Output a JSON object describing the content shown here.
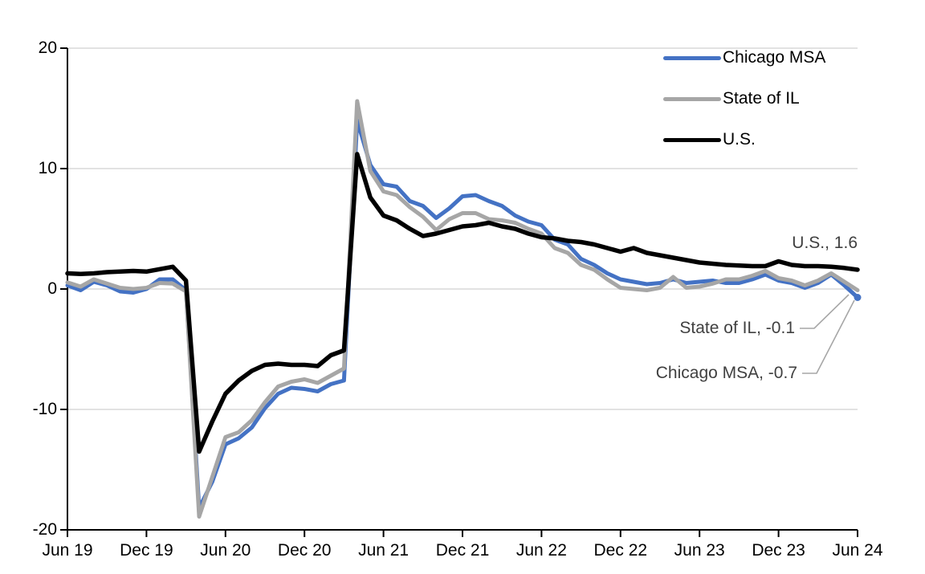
{
  "chart_data": {
    "type": "line",
    "title": "",
    "xlabel": "",
    "ylabel": "",
    "x_start": "Jun 2019",
    "x_end": "Jun 2024",
    "x_frequency": "monthly",
    "x_tick_labels": [
      "Jun 19",
      "Dec 19",
      "Jun 20",
      "Dec 20",
      "Jun 21",
      "Dec 21",
      "Jun 22",
      "Dec 22",
      "Jun 23",
      "Dec 23",
      "Jun 24"
    ],
    "y_tick_labels": [
      "20",
      "10",
      "0",
      "-10",
      "-20"
    ],
    "y_tick_values": [
      20,
      10,
      0,
      -10,
      -20
    ],
    "ylim": [
      -20,
      20
    ],
    "grid": "horizontal",
    "gridline_values": [
      20,
      10,
      0,
      -10
    ],
    "legend_position": "top-right",
    "series": [
      {
        "name": "Chicago MSA",
        "color": "#4472C4",
        "width": 5,
        "end_marker": true,
        "values": [
          0.3,
          -0.1,
          0.6,
          0.3,
          -0.2,
          -0.3,
          0.0,
          0.8,
          0.8,
          -0.1,
          -18.2,
          -16.0,
          -12.9,
          -12.4,
          -11.5,
          -9.9,
          -8.7,
          -8.2,
          -8.3,
          -8.5,
          -7.9,
          -7.6,
          14.0,
          10.3,
          8.7,
          8.5,
          7.3,
          6.9,
          5.9,
          6.7,
          7.7,
          7.8,
          7.3,
          6.9,
          6.1,
          5.6,
          5.3,
          4.1,
          3.7,
          2.5,
          2.0,
          1.3,
          0.8,
          0.6,
          0.4,
          0.5,
          0.8,
          0.5,
          0.6,
          0.7,
          0.5,
          0.5,
          0.8,
          1.2,
          0.7,
          0.5,
          0.1,
          0.5,
          1.2,
          0.3,
          -0.7
        ]
      },
      {
        "name": "State of IL",
        "color": "#A6A6A6",
        "width": 5,
        "end_marker": false,
        "values": [
          0.55,
          0.2,
          0.8,
          0.45,
          0.1,
          0.0,
          0.1,
          0.5,
          0.45,
          -0.2,
          -18.9,
          -15.6,
          -12.3,
          -11.9,
          -10.9,
          -9.4,
          -8.1,
          -7.7,
          -7.5,
          -7.8,
          -7.2,
          -6.6,
          15.6,
          9.8,
          8.1,
          7.8,
          6.8,
          6.0,
          4.9,
          5.8,
          6.3,
          6.3,
          5.8,
          5.7,
          5.5,
          5.0,
          4.6,
          3.4,
          3.0,
          2.0,
          1.6,
          0.8,
          0.1,
          0.0,
          -0.1,
          0.1,
          1.0,
          0.1,
          0.2,
          0.45,
          0.8,
          0.8,
          1.1,
          1.5,
          0.9,
          0.7,
          0.3,
          0.7,
          1.3,
          0.6,
          -0.1
        ]
      },
      {
        "name": "U.S.",
        "color": "#000000",
        "width": 5.5,
        "end_marker": false,
        "values": [
          1.3,
          1.25,
          1.3,
          1.4,
          1.45,
          1.5,
          1.45,
          1.65,
          1.85,
          0.7,
          -13.5,
          -11.0,
          -8.7,
          -7.6,
          -6.8,
          -6.3,
          -6.2,
          -6.3,
          -6.3,
          -6.4,
          -5.5,
          -5.1,
          11.2,
          7.6,
          6.1,
          5.7,
          5.0,
          4.4,
          4.6,
          4.9,
          5.2,
          5.3,
          5.5,
          5.2,
          5.0,
          4.6,
          4.3,
          4.2,
          4.0,
          3.9,
          3.7,
          3.4,
          3.1,
          3.4,
          3.0,
          2.8,
          2.6,
          2.4,
          2.2,
          2.1,
          2.0,
          1.95,
          1.9,
          1.9,
          2.3,
          2.0,
          1.9,
          1.9,
          1.85,
          1.75,
          1.6
        ]
      }
    ],
    "end_values": {
      "chicago_msa": -0.7,
      "state_of_il": -0.1,
      "us": 1.6
    }
  },
  "legend": {
    "items": [
      {
        "label": "Chicago MSA",
        "color": "#4472C4"
      },
      {
        "label": "State of IL",
        "color": "#A6A6A6"
      },
      {
        "label": "U.S.",
        "color": "#000000"
      }
    ]
  },
  "annotations": {
    "us": {
      "text": "U.S., 1.6"
    },
    "il": {
      "text": "State of IL, -0.1"
    },
    "chicago": {
      "text": "Chicago MSA, -0.7"
    }
  },
  "colors": {
    "background": "#FFFFFF",
    "gridline": "#D9D9D9",
    "axis": "#000000",
    "annotation_text": "#404040",
    "leader_line": "#A6A6A6",
    "chicago_blue": "#4472C4",
    "il_gray": "#A6A6A6",
    "us_black": "#000000"
  }
}
